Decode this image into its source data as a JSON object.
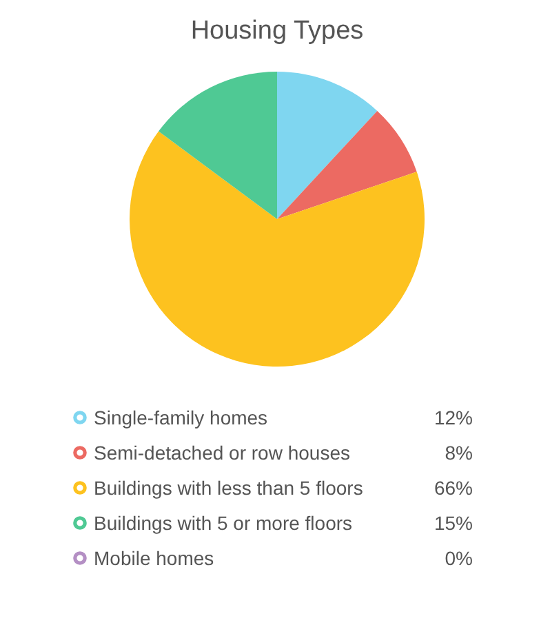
{
  "chart_data": {
    "type": "pie",
    "title": "Housing Types",
    "categories": [
      "Single-family homes",
      "Semi-detached or row houses",
      "Buildings with less than 5 floors",
      "Buildings with 5 or more floors",
      "Mobile homes"
    ],
    "values": [
      12,
      8,
      66,
      15,
      0
    ],
    "colors": [
      "#7fd6f0",
      "#ec6a62",
      "#fdc21f",
      "#4fc994",
      "#b48fc4"
    ],
    "value_labels": [
      "12%",
      "8%",
      "66%",
      "15%",
      "0%"
    ],
    "legend": "bottom"
  }
}
